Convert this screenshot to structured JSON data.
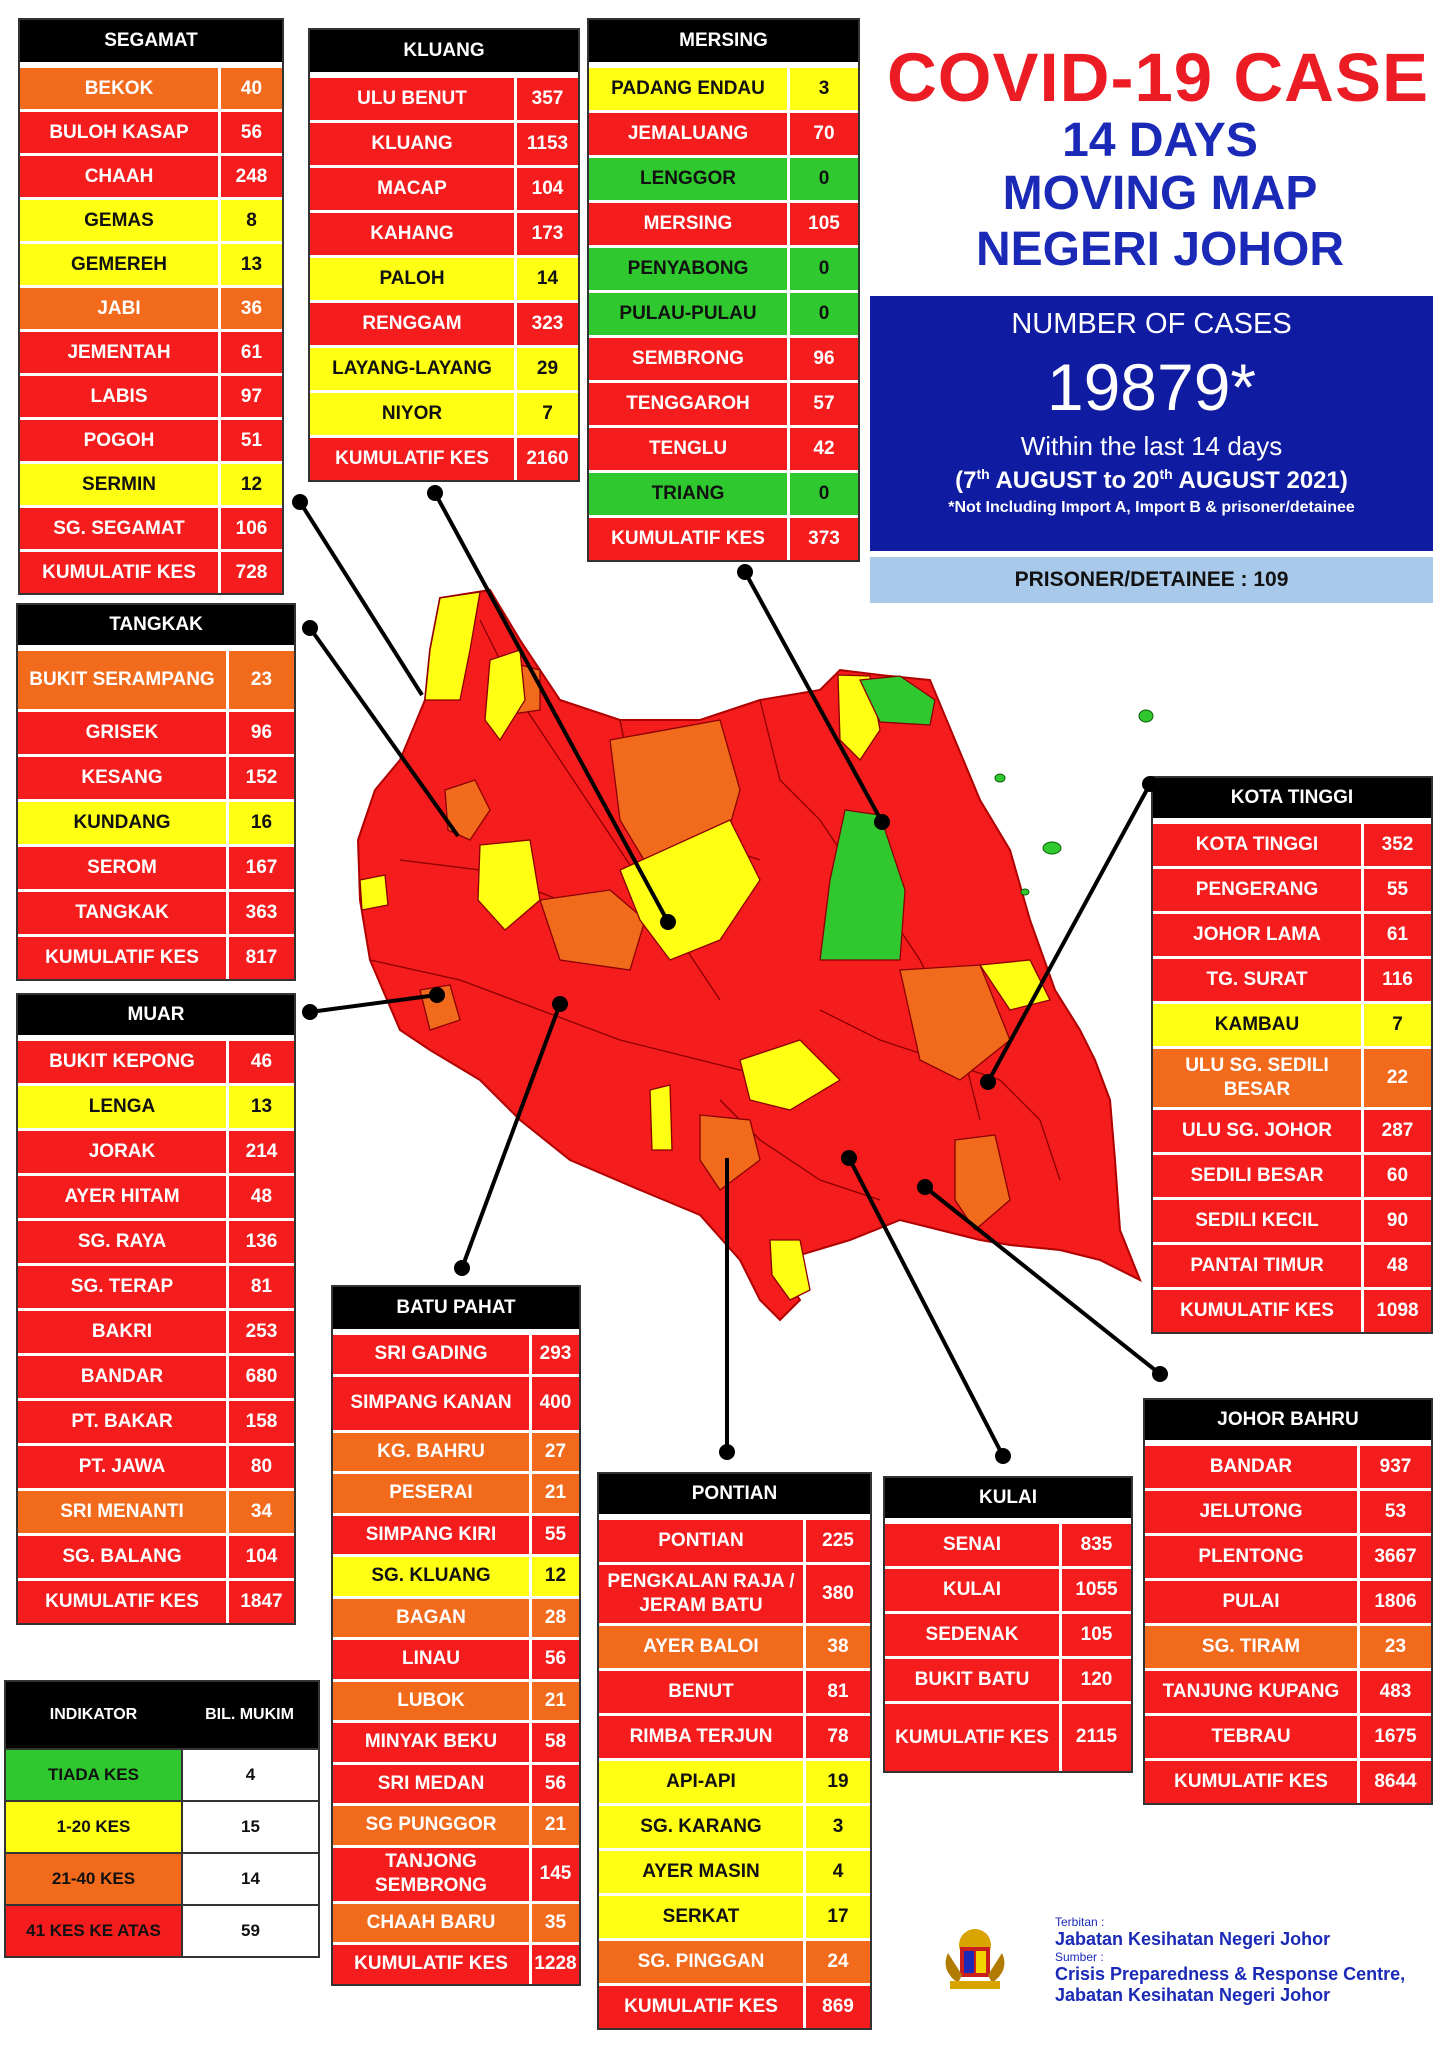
{
  "title": {
    "line1": "COVID-19 CASE",
    "line2": "14 DAYS",
    "line3": "MOVING MAP",
    "line4": "NEGERI JOHOR"
  },
  "summary": {
    "heading": "NUMBER OF CASES",
    "total": "19879*",
    "within": "Within the last 14 days",
    "period_open": "(7",
    "period_sup1": "th",
    "period_mid": " AUGUST  to 20",
    "period_sup2": "th",
    "period_close": " AUGUST 2021)",
    "note": "*Not Including Import A, Import B & prisoner/detainee",
    "prisoner": "PRISONER/DETAINEE : 109"
  },
  "colors": {
    "red": "#f41c1c",
    "yellow": "#ffff14",
    "orange": "#f26b1d",
    "green": "#2fc92f",
    "blue": "#1a2ab7"
  },
  "districts": {
    "segamat": {
      "header": "SEGAMAT",
      "rows": [
        {
          "name": "BEKOK",
          "value": "40",
          "color": "orange"
        },
        {
          "name": "BULOH KASAP",
          "value": "56",
          "color": "red"
        },
        {
          "name": "CHAAH",
          "value": "248",
          "color": "red"
        },
        {
          "name": "GEMAS",
          "value": "8",
          "color": "yellow"
        },
        {
          "name": "GEMEREH",
          "value": "13",
          "color": "yellow"
        },
        {
          "name": "JABI",
          "value": "36",
          "color": "orange"
        },
        {
          "name": "JEMENTAH",
          "value": "61",
          "color": "red"
        },
        {
          "name": "LABIS",
          "value": "97",
          "color": "red"
        },
        {
          "name": "POGOH",
          "value": "51",
          "color": "red"
        },
        {
          "name": "SERMIN",
          "value": "12",
          "color": "yellow"
        },
        {
          "name": "SG. SEGAMAT",
          "value": "106",
          "color": "red"
        },
        {
          "name": "KUMULATIF KES",
          "value": "728",
          "color": "red"
        }
      ]
    },
    "kluang": {
      "header": "KLUANG",
      "rows": [
        {
          "name": "ULU BENUT",
          "value": "357",
          "color": "red"
        },
        {
          "name": "KLUANG",
          "value": "1153",
          "color": "red"
        },
        {
          "name": "MACAP",
          "value": "104",
          "color": "red"
        },
        {
          "name": "KAHANG",
          "value": "173",
          "color": "red"
        },
        {
          "name": "PALOH",
          "value": "14",
          "color": "yellow"
        },
        {
          "name": "RENGGAM",
          "value": "323",
          "color": "red"
        },
        {
          "name": "LAYANG-LAYANG",
          "value": "29",
          "color": "yellow"
        },
        {
          "name": "NIYOR",
          "value": "7",
          "color": "yellow"
        },
        {
          "name": "KUMULATIF KES",
          "value": "2160",
          "color": "red"
        }
      ]
    },
    "mersing": {
      "header": "MERSING",
      "rows": [
        {
          "name": "PADANG ENDAU",
          "value": "3",
          "color": "yellow"
        },
        {
          "name": "JEMALUANG",
          "value": "70",
          "color": "red"
        },
        {
          "name": "LENGGOR",
          "value": "0",
          "color": "green"
        },
        {
          "name": "MERSING",
          "value": "105",
          "color": "red"
        },
        {
          "name": "PENYABONG",
          "value": "0",
          "color": "green"
        },
        {
          "name": "PULAU-PULAU",
          "value": "0",
          "color": "green"
        },
        {
          "name": "SEMBRONG",
          "value": "96",
          "color": "red"
        },
        {
          "name": "TENGGAROH",
          "value": "57",
          "color": "red"
        },
        {
          "name": "TENGLU",
          "value": "42",
          "color": "red"
        },
        {
          "name": "TRIANG",
          "value": "0",
          "color": "green"
        },
        {
          "name": "KUMULATIF KES",
          "value": "373",
          "color": "red"
        }
      ]
    },
    "tangkak": {
      "header": "TANGKAK",
      "rows": [
        {
          "name": "BUKIT SERAMPANG",
          "value": "23",
          "color": "orange"
        },
        {
          "name": "GRISEK",
          "value": "96",
          "color": "red"
        },
        {
          "name": "KESANG",
          "value": "152",
          "color": "red"
        },
        {
          "name": "KUNDANG",
          "value": "16",
          "color": "yellow"
        },
        {
          "name": "SEROM",
          "value": "167",
          "color": "red"
        },
        {
          "name": "TANGKAK",
          "value": "363",
          "color": "red"
        },
        {
          "name": "KUMULATIF KES",
          "value": "817",
          "color": "red"
        }
      ]
    },
    "muar": {
      "header": "MUAR",
      "rows": [
        {
          "name": "BUKIT KEPONG",
          "value": "46",
          "color": "red"
        },
        {
          "name": "LENGA",
          "value": "13",
          "color": "yellow"
        },
        {
          "name": "JORAK",
          "value": "214",
          "color": "red"
        },
        {
          "name": "AYER HITAM",
          "value": "48",
          "color": "red"
        },
        {
          "name": "SG. RAYA",
          "value": "136",
          "color": "red"
        },
        {
          "name": "SG. TERAP",
          "value": "81",
          "color": "red"
        },
        {
          "name": "BAKRI",
          "value": "253",
          "color": "red"
        },
        {
          "name": "BANDAR",
          "value": "680",
          "color": "red"
        },
        {
          "name": "PT. BAKAR",
          "value": "158",
          "color": "red"
        },
        {
          "name": "PT. JAWA",
          "value": "80",
          "color": "red"
        },
        {
          "name": "SRI MENANTI",
          "value": "34",
          "color": "orange"
        },
        {
          "name": "SG. BALANG",
          "value": "104",
          "color": "red"
        },
        {
          "name": "KUMULATIF KES",
          "value": "1847",
          "color": "red"
        }
      ]
    },
    "kota_tinggi": {
      "header": "KOTA TINGGI",
      "rows": [
        {
          "name": "KOTA TINGGI",
          "value": "352",
          "color": "red"
        },
        {
          "name": "PENGERANG",
          "value": "55",
          "color": "red"
        },
        {
          "name": "JOHOR LAMA",
          "value": "61",
          "color": "red"
        },
        {
          "name": "TG. SURAT",
          "value": "116",
          "color": "red"
        },
        {
          "name": "KAMBAU",
          "value": "7",
          "color": "yellow"
        },
        {
          "name": "ULU SG. SEDILI BESAR",
          "value": "22",
          "color": "orange"
        },
        {
          "name": "ULU  SG. JOHOR",
          "value": "287",
          "color": "red"
        },
        {
          "name": "SEDILI BESAR",
          "value": "60",
          "color": "red"
        },
        {
          "name": "SEDILI KECIL",
          "value": "90",
          "color": "red"
        },
        {
          "name": "PANTAI TIMUR",
          "value": "48",
          "color": "red"
        },
        {
          "name": "KUMULATIF KES",
          "value": "1098",
          "color": "red"
        }
      ]
    },
    "batu_pahat": {
      "header": "BATU PAHAT",
      "rows": [
        {
          "name": "SRI GADING",
          "value": "293",
          "color": "red"
        },
        {
          "name": "SIMPANG KANAN",
          "value": "400",
          "color": "red"
        },
        {
          "name": "KG. BAHRU",
          "value": "27",
          "color": "orange"
        },
        {
          "name": "PESERAI",
          "value": "21",
          "color": "orange"
        },
        {
          "name": "SIMPANG KIRI",
          "value": "55",
          "color": "red"
        },
        {
          "name": "SG. KLUANG",
          "value": "12",
          "color": "yellow"
        },
        {
          "name": "BAGAN",
          "value": "28",
          "color": "orange"
        },
        {
          "name": "LINAU",
          "value": "56",
          "color": "red"
        },
        {
          "name": "LUBOK",
          "value": "21",
          "color": "orange"
        },
        {
          "name": "MINYAK BEKU",
          "value": "58",
          "color": "red"
        },
        {
          "name": "SRI MEDAN",
          "value": "56",
          "color": "red"
        },
        {
          "name": "SG PUNGGOR",
          "value": "21",
          "color": "orange"
        },
        {
          "name": "TANJONG SEMBRONG",
          "value": "145",
          "color": "red"
        },
        {
          "name": "CHAAH BARU",
          "value": "35",
          "color": "orange"
        },
        {
          "name": "KUMULATIF KES",
          "value": "1228",
          "color": "red"
        }
      ]
    },
    "pontian": {
      "header": "PONTIAN",
      "rows": [
        {
          "name": "PONTIAN",
          "value": "225",
          "color": "red"
        },
        {
          "name": "PENGKALAN RAJA / JERAM BATU",
          "value": "380",
          "color": "red"
        },
        {
          "name": "AYER BALOI",
          "value": "38",
          "color": "orange"
        },
        {
          "name": "BENUT",
          "value": "81",
          "color": "red"
        },
        {
          "name": "RIMBA TERJUN",
          "value": "78",
          "color": "red"
        },
        {
          "name": "API-API",
          "value": "19",
          "color": "yellow"
        },
        {
          "name": "SG. KARANG",
          "value": "3",
          "color": "yellow"
        },
        {
          "name": "AYER MASIN",
          "value": "4",
          "color": "yellow"
        },
        {
          "name": "SERKAT",
          "value": "17",
          "color": "yellow"
        },
        {
          "name": "SG. PINGGAN",
          "value": "24",
          "color": "orange"
        },
        {
          "name": "KUMULATIF KES",
          "value": "869",
          "color": "red"
        }
      ]
    },
    "kulai": {
      "header": "KULAI",
      "rows": [
        {
          "name": "SENAI",
          "value": "835",
          "color": "red"
        },
        {
          "name": "KULAI",
          "value": "1055",
          "color": "red"
        },
        {
          "name": "SEDENAK",
          "value": "105",
          "color": "red"
        },
        {
          "name": "BUKIT BATU",
          "value": "120",
          "color": "red"
        },
        {
          "name": "KUMULATIF KES",
          "value": "2115",
          "color": "red"
        }
      ]
    },
    "johor_bahru": {
      "header": "JOHOR BAHRU",
      "rows": [
        {
          "name": "BANDAR",
          "value": "937",
          "color": "red"
        },
        {
          "name": "JELUTONG",
          "value": "53",
          "color": "red"
        },
        {
          "name": "PLENTONG",
          "value": "3667",
          "color": "red"
        },
        {
          "name": "PULAI",
          "value": "1806",
          "color": "red"
        },
        {
          "name": "SG. TIRAM",
          "value": "23",
          "color": "orange"
        },
        {
          "name": "TANJUNG KUPANG",
          "value": "483",
          "color": "red"
        },
        {
          "name": "TEBRAU",
          "value": "1675",
          "color": "red"
        },
        {
          "name": "KUMULATIF KES",
          "value": "8644",
          "color": "red"
        }
      ]
    }
  },
  "legend": {
    "col1": "INDIKATOR",
    "col2": "BIL. MUKIM",
    "rows": [
      {
        "label": "TIADA KES",
        "count": "4",
        "color": "green"
      },
      {
        "label": "1-20 KES",
        "count": "15",
        "color": "yellow"
      },
      {
        "label": "21-40 KES",
        "count": "14",
        "color": "orange"
      },
      {
        "label": "41 KES KE ATAS",
        "count": "59",
        "color": "red"
      }
    ]
  },
  "credits": {
    "terbitan_label": "Terbitan :",
    "terbitan": "Jabatan Kesihatan Negeri Johor",
    "sumber_label": "Sumber :",
    "sumber1": "Crisis Preparedness & Response Centre,",
    "sumber2": "Jabatan Kesihatan Negeri Johor"
  }
}
